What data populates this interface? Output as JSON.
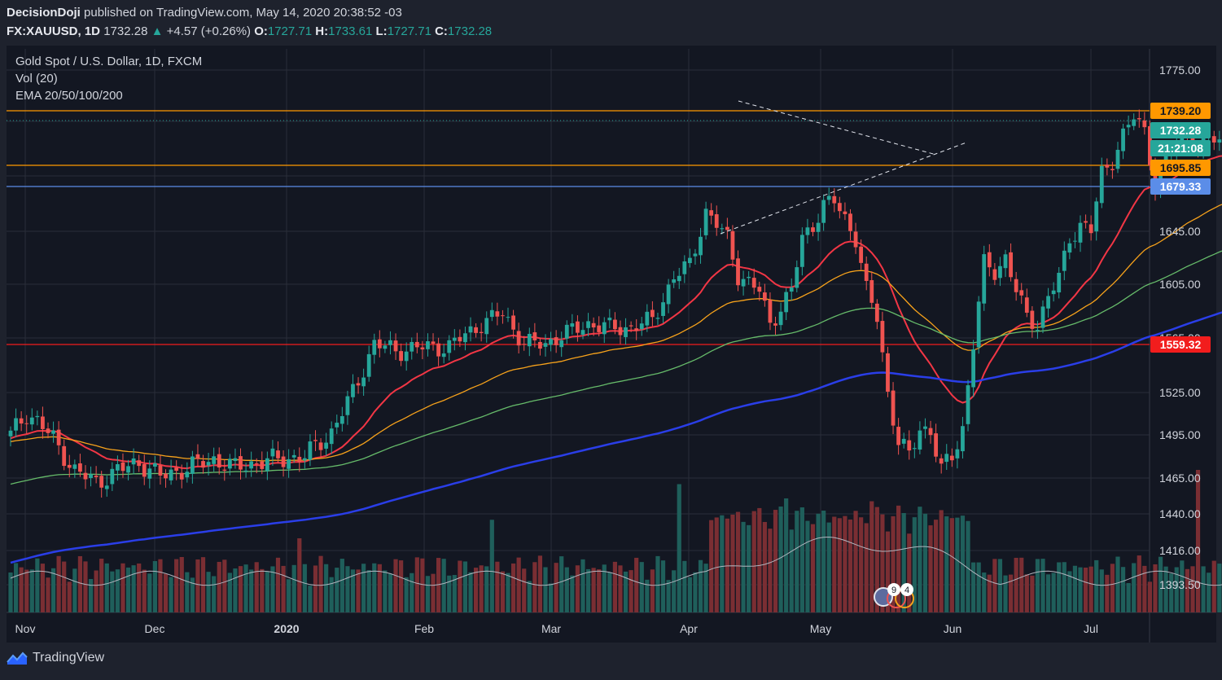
{
  "header": {
    "publisher": "DecisionDoji",
    "published_text": "published on TradingView.com, May 14, 2020 20:38:52 -03",
    "symbol": "FX:XAUUSD, 1D",
    "last": "1732.28",
    "change": "+4.57 (+0.26%)",
    "o_label": "O:",
    "o": "1727.71",
    "h_label": "H:",
    "h": "1733.61",
    "l_label": "L:",
    "l": "1727.71",
    "c_label": "C:",
    "c": "1732.28"
  },
  "legend": {
    "title": "Gold Spot / U.S. Dollar, 1D, FXCM",
    "vol": "Vol (20)",
    "ema": "EMA 20/50/100/200"
  },
  "footer": {
    "brand": "TradingView"
  },
  "colors": {
    "background": "#131722",
    "up": "#26a69a",
    "down": "#ef5350",
    "ema20": "#f23645",
    "ema50": "#f7a21b",
    "ema100": "#66bb6a",
    "ema200": "#2a3ee8",
    "hline_orange": "#ff9800",
    "hline_blue": "#5b8de8",
    "hline_red": "#f21d1d"
  },
  "chart_data": {
    "type": "candlestick",
    "title": "Gold Spot / U.S. Dollar, 1D, FXCM",
    "y_ticks": [
      "1775.00",
      "1645.00",
      "1605.00",
      "1565.00",
      "1525.00",
      "1495.00",
      "1465.00",
      "1440.00",
      "1416.00",
      "1393.50"
    ],
    "x_ticks": [
      "Nov",
      "Dec",
      "2020",
      "Feb",
      "Mar",
      "Apr",
      "May",
      "Jun",
      "Jul"
    ],
    "price_labels": [
      {
        "label": "1739.20",
        "color": "#ff9800",
        "text_color": "#131722"
      },
      {
        "label": "1732.28",
        "color": "#26a69a",
        "text_color": "#ffffff"
      },
      {
        "label": "21:21:08",
        "color": "#26a69a",
        "text_color": "#ffffff"
      },
      {
        "label": "1695.85",
        "color": "#ff9800",
        "text_color": "#131722"
      },
      {
        "label": "1679.33",
        "color": "#5b8de8",
        "text_color": "#ffffff"
      },
      {
        "label": "1559.32",
        "color": "#f21d1d",
        "text_color": "#ffffff"
      }
    ],
    "horizontal_levels": [
      1739.2,
      1695.85,
      1679.33,
      1559.32
    ],
    "last_price": 1732.28,
    "series": [
      {
        "name": "EMA 20",
        "type": "line"
      },
      {
        "name": "EMA 50",
        "type": "line"
      },
      {
        "name": "EMA 100",
        "type": "line"
      },
      {
        "name": "EMA 200",
        "type": "line"
      },
      {
        "name": "Vol (20)",
        "type": "bar"
      }
    ],
    "ohlc_last": {
      "date": "2020-05-14",
      "open": 1727.71,
      "high": 1733.61,
      "low": 1727.71,
      "close": 1732.28
    },
    "events_badges": [
      "9",
      "4"
    ],
    "grid": true
  }
}
